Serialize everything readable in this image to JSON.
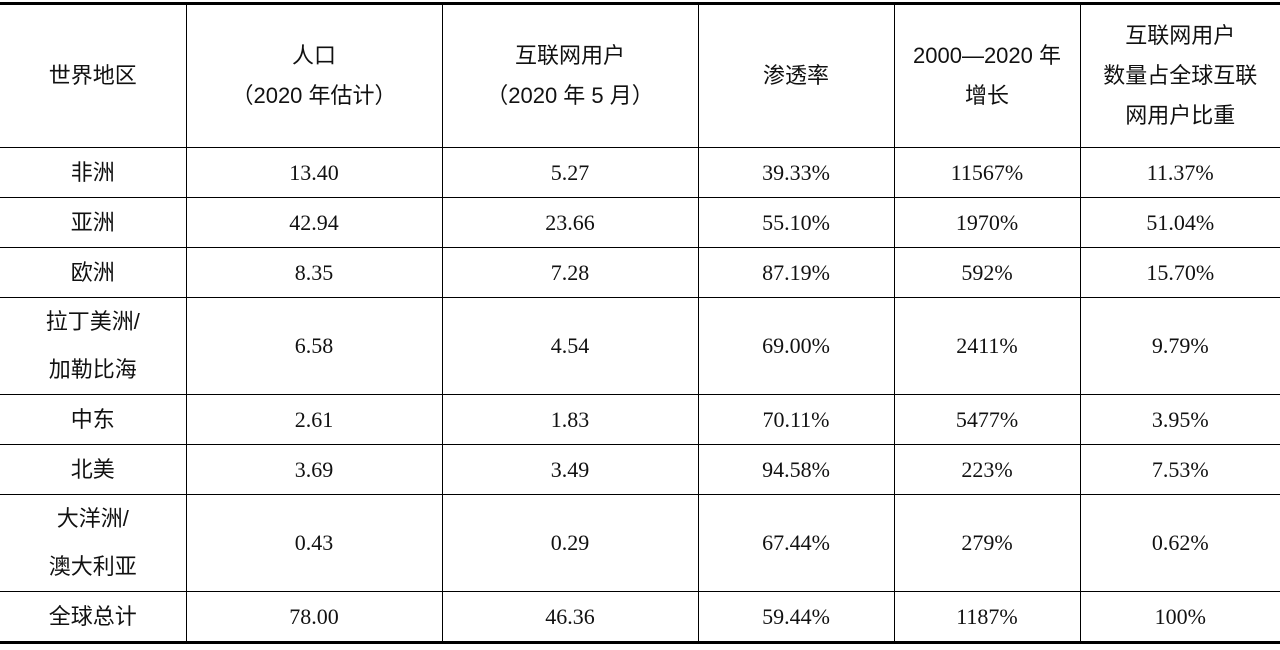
{
  "table": {
    "headers": [
      [
        "世界地区"
      ],
      [
        "人口",
        "（2020 年估计）"
      ],
      [
        "互联网用户",
        "（2020 年 5 月）"
      ],
      [
        "渗透率"
      ],
      [
        "2000—2020 年",
        "增长"
      ],
      [
        "互联网用户",
        "数量占全球互联",
        "网用户比重"
      ]
    ],
    "rows": [
      {
        "region": [
          "非洲"
        ],
        "population": "13.40",
        "users": "5.27",
        "penetration": "39.33%",
        "growth": "11567%",
        "share": "11.37%"
      },
      {
        "region": [
          "亚洲"
        ],
        "population": "42.94",
        "users": "23.66",
        "penetration": "55.10%",
        "growth": "1970%",
        "share": "51.04%"
      },
      {
        "region": [
          "欧洲"
        ],
        "population": "8.35",
        "users": "7.28",
        "penetration": "87.19%",
        "growth": "592%",
        "share": "15.70%"
      },
      {
        "region": [
          "拉丁美洲/",
          "加勒比海"
        ],
        "population": "6.58",
        "users": "4.54",
        "penetration": "69.00%",
        "growth": "2411%",
        "share": "9.79%"
      },
      {
        "region": [
          "中东"
        ],
        "population": "2.61",
        "users": "1.83",
        "penetration": "70.11%",
        "growth": "5477%",
        "share": "3.95%"
      },
      {
        "region": [
          "北美"
        ],
        "population": "3.69",
        "users": "3.49",
        "penetration": "94.58%",
        "growth": "223%",
        "share": "7.53%"
      },
      {
        "region": [
          "大洋洲/",
          "澳大利亚"
        ],
        "population": "0.43",
        "users": "0.29",
        "penetration": "67.44%",
        "growth": "279%",
        "share": "0.62%"
      },
      {
        "region": [
          "全球总计"
        ],
        "population": "78.00",
        "users": "46.36",
        "penetration": "59.44%",
        "growth": "1187%",
        "share": "100%"
      }
    ]
  }
}
